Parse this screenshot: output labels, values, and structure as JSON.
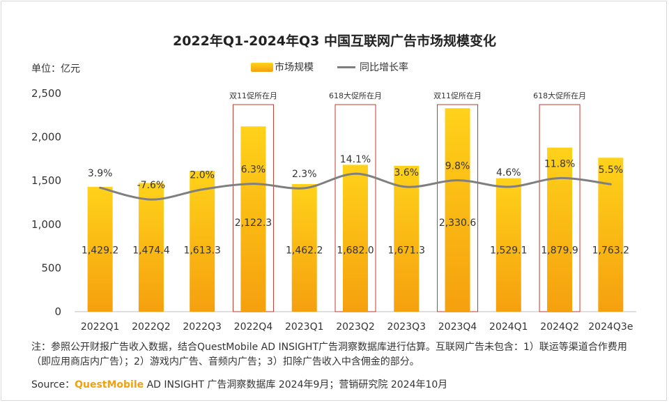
{
  "title": "2022年Q1-2024年Q3 中国互联网广告市场规模变化",
  "unit_label": "单位：亿元",
  "legend": {
    "bar_label": "市场规模",
    "line_label": "同比增长率"
  },
  "colors": {
    "bar_top": "#ffd21a",
    "bar_bottom": "#f5a00e",
    "line": "#7f7f7f",
    "highlight_box": "#c0392b",
    "brand": "#f0a010"
  },
  "chart_data": {
    "type": "bar",
    "categories": [
      "2022Q1",
      "2022Q2",
      "2022Q3",
      "2022Q4",
      "2023Q1",
      "2023Q2",
      "2023Q3",
      "2023Q4",
      "2024Q1",
      "2024Q2",
      "2024Q3e"
    ],
    "series": [
      {
        "name": "市场规模",
        "type": "bar",
        "values": [
          1429.2,
          1474.4,
          1613.3,
          2122.3,
          1462.2,
          1682.0,
          1671.3,
          2330.6,
          1529.1,
          1879.9,
          1763.2
        ],
        "labels": [
          "1,429.2",
          "1,474.4",
          "1,613.3",
          "2,122.3",
          "1,462.2",
          "1,682.0",
          "1,671.3",
          "2,330.6",
          "1,529.1",
          "1,879.9",
          "1,763.2"
        ]
      },
      {
        "name": "同比增长率",
        "type": "line",
        "values": [
          3.9,
          -7.6,
          2.0,
          6.3,
          2.3,
          14.1,
          3.6,
          9.8,
          4.6,
          11.8,
          5.5
        ],
        "labels": [
          "3.9%",
          "-7.6%",
          "2.0%",
          "6.3%",
          "2.3%",
          "14.1%",
          "3.6%",
          "9.8%",
          "4.6%",
          "11.8%",
          "5.5%"
        ],
        "line_y_values": [
          1420,
          1285,
          1400,
          1465,
          1415,
          1580,
          1430,
          1505,
          1430,
          1530,
          1460
        ]
      }
    ],
    "ylim": [
      0,
      2500
    ],
    "yticks": [
      0,
      500,
      1000,
      1500,
      2000,
      2500
    ],
    "ytick_labels": [
      "0",
      "500",
      "1,000",
      "1,500",
      "2,000",
      "2,500"
    ],
    "annotations": [
      {
        "index": 3,
        "text": "双11促所在月"
      },
      {
        "index": 5,
        "text": "618大促所在月"
      },
      {
        "index": 7,
        "text": "双11促所在月"
      },
      {
        "index": 9,
        "text": "618大促所在月"
      }
    ],
    "grid": false,
    "legend_position": "top-center"
  },
  "notes": "注：参照公开财报广告收入数据，结合QuestMobile AD INSIGHT广告洞察数据库进行估算。互联网广告未包含：1）联运等渠道合作费用（即应用商店内广告）；2）游戏内广告、音频内广告；3）扣除广告收入中含佣金的部分。",
  "source": {
    "prefix": "Source：",
    "brand": "QuestMobile",
    "rest": " AD INSIGHT 广告洞察数据库 2024年9月；营销研究院 2024年10月"
  }
}
